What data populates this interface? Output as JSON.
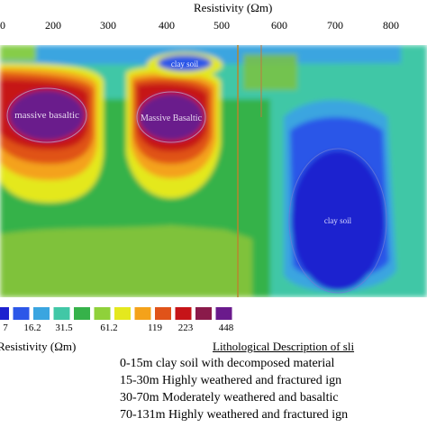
{
  "chart_data": {
    "type": "heatmap",
    "title": "",
    "xlabel": "Resistivity (Ωm)",
    "x_ticks": [
      "0",
      "200",
      "300",
      "400",
      "500",
      "600",
      "700",
      "800"
    ],
    "annotations": [
      {
        "text": "massive basaltic",
        "target": "left anomaly"
      },
      {
        "text": "Massive Basaltic",
        "target": "middle anomaly"
      },
      {
        "text": "clay soil",
        "target": "upper anomaly"
      },
      {
        "text": "clay soil",
        "target": "right low-resistivity zone"
      }
    ],
    "color_scale": {
      "title": "Resistivity (Ωm)",
      "labels": [
        "7",
        "16.2",
        "31.5",
        "61.2",
        "119",
        "223",
        "448"
      ],
      "colors": [
        "#1d21cf",
        "#2c57e8",
        "#3aa5e0",
        "#41c7a6",
        "#36b24a",
        "#8fd13a",
        "#e4e81e",
        "#f4a21a",
        "#e05319",
        "#c61418",
        "#8a1a4a",
        "#6a1a8c"
      ]
    },
    "zones": [
      {
        "name": "massive-basaltic-left",
        "resistivity": 448
      },
      {
        "name": "massive-basaltic-middle",
        "resistivity": 448
      },
      {
        "name": "clay-soil-right",
        "resistivity": 7
      }
    ]
  },
  "lithology": {
    "title": "Lithological Description of sli",
    "lines": [
      "0-15m clay soil with decomposed material",
      "15-30m Highly weathered and fractured ign",
      "30-70m Moderately weathered and basaltic",
      "70-131m Highly weathered and fractured ign"
    ]
  }
}
